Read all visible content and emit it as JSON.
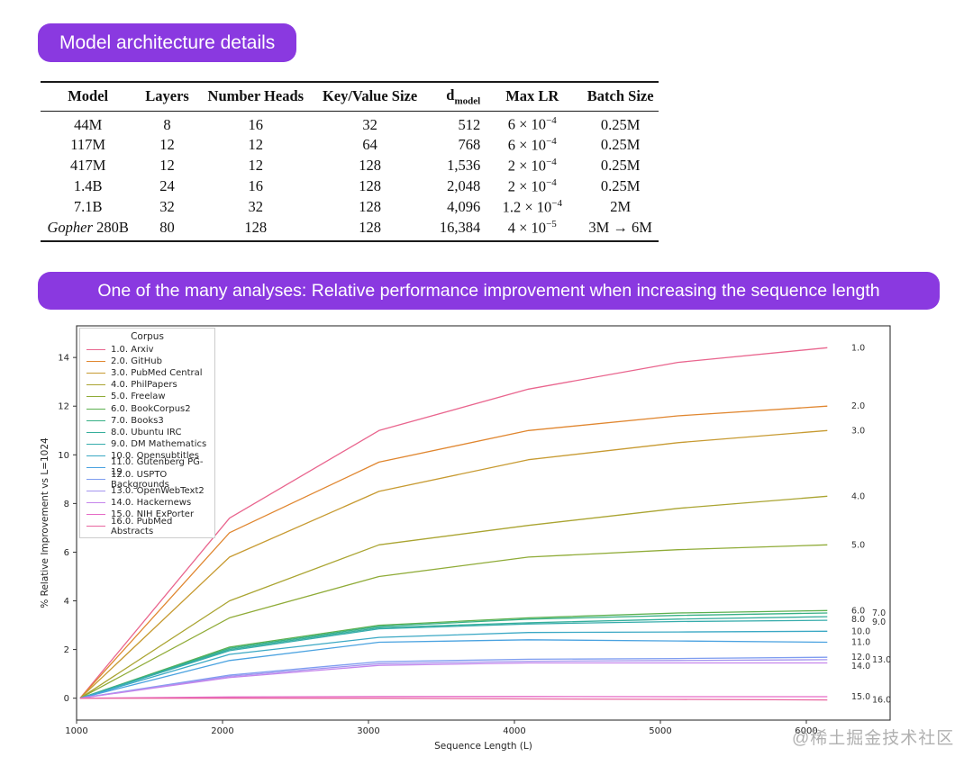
{
  "page": {
    "background": "#ffffff",
    "accent_purple": "#8a39e0",
    "watermark": "@稀土掘金技术社区"
  },
  "badges": {
    "table_badge": "Model architecture details",
    "chart_badge": "One of the many analyses: Relative performance improvement when increasing the sequence length"
  },
  "table": {
    "headers": [
      {
        "text": "Model"
      },
      {
        "text": "Layers"
      },
      {
        "text": "Number Heads"
      },
      {
        "text": "Key/Value Size"
      },
      {
        "text": "d",
        "sub": "model"
      },
      {
        "text": "Max LR"
      },
      {
        "text": "Batch Size"
      }
    ],
    "rows": [
      [
        {
          "text": "44M"
        },
        {
          "text": "8"
        },
        {
          "text": "16"
        },
        {
          "text": "32"
        },
        {
          "text": "512"
        },
        {
          "coef": "6 × 10",
          "exp": "−4"
        },
        {
          "text": "0.25M"
        }
      ],
      [
        {
          "text": "117M"
        },
        {
          "text": "12"
        },
        {
          "text": "12"
        },
        {
          "text": "64"
        },
        {
          "text": "768"
        },
        {
          "coef": "6 × 10",
          "exp": "−4"
        },
        {
          "text": "0.25M"
        }
      ],
      [
        {
          "text": "417M"
        },
        {
          "text": "12"
        },
        {
          "text": "12"
        },
        {
          "text": "128"
        },
        {
          "text": "1,536"
        },
        {
          "coef": "2 × 10",
          "exp": "−4"
        },
        {
          "text": "0.25M"
        }
      ],
      [
        {
          "text": "1.4B"
        },
        {
          "text": "24"
        },
        {
          "text": "16"
        },
        {
          "text": "128"
        },
        {
          "text": "2,048"
        },
        {
          "coef": "2 × 10",
          "exp": "−4"
        },
        {
          "text": "0.25M"
        }
      ],
      [
        {
          "text": "7.1B"
        },
        {
          "text": "32"
        },
        {
          "text": "32"
        },
        {
          "text": "128"
        },
        {
          "text": "4,096"
        },
        {
          "coef": "1.2 × 10",
          "exp": "−4"
        },
        {
          "text": "2M"
        }
      ],
      [
        {
          "italic": "Gopher",
          "text": " 280B"
        },
        {
          "text": "80"
        },
        {
          "text": "128"
        },
        {
          "text": "128"
        },
        {
          "text": "16,384"
        },
        {
          "coef": "4 × 10",
          "exp": "−5"
        },
        {
          "text": "3M → 6M"
        }
      ]
    ]
  },
  "chart_data": {
    "type": "line",
    "title": "",
    "xlabel": "Sequence Length (L)",
    "ylabel": "% Relative Improvement vs L=1024",
    "legend_title": "Corpus",
    "legend_position": "upper left",
    "grid": false,
    "x": [
      1024,
      2048,
      3072,
      4096,
      5120,
      6144
    ],
    "xticks": [
      1000,
      2000,
      3000,
      4000,
      5000,
      6000
    ],
    "yticks": [
      0,
      2,
      4,
      6,
      8,
      10,
      12,
      14
    ],
    "xlim": [
      1000,
      6574
    ],
    "ylim": [
      -0.9,
      15.3
    ],
    "series": [
      {
        "id": "1.0",
        "name": "Arxiv",
        "color": "#e9658e",
        "label_col": 1,
        "values": [
          0,
          7.4,
          11.0,
          12.7,
          13.8,
          14.4
        ]
      },
      {
        "id": "2.0",
        "name": "GitHub",
        "color": "#e0862f",
        "label_col": 1,
        "values": [
          0,
          6.8,
          9.7,
          11.0,
          11.6,
          12.0
        ]
      },
      {
        "id": "3.0",
        "name": "PubMed Central",
        "color": "#c79a31",
        "label_col": 1,
        "values": [
          0,
          5.8,
          8.5,
          9.8,
          10.5,
          11.0
        ]
      },
      {
        "id": "4.0",
        "name": "PhilPapers",
        "color": "#aaa431",
        "label_col": 1,
        "values": [
          0,
          4.0,
          6.3,
          7.1,
          7.8,
          8.3
        ]
      },
      {
        "id": "5.0",
        "name": "Freelaw",
        "color": "#8fab37",
        "label_col": 1,
        "values": [
          0,
          3.3,
          5.0,
          5.8,
          6.1,
          6.3
        ]
      },
      {
        "id": "6.0",
        "name": "BookCorpus2",
        "color": "#5bb04f",
        "label_col": 1,
        "values": [
          0,
          2.1,
          3.0,
          3.3,
          3.5,
          3.6
        ]
      },
      {
        "id": "7.0",
        "name": "Books3",
        "color": "#36b085",
        "label_col": 2,
        "values": [
          0,
          2.05,
          2.95,
          3.25,
          3.4,
          3.5
        ]
      },
      {
        "id": "8.0",
        "name": "Ubuntu IRC",
        "color": "#35ae9b",
        "label_col": 1,
        "values": [
          0,
          2.0,
          2.9,
          3.1,
          3.25,
          3.35
        ]
      },
      {
        "id": "9.0",
        "name": "DM Mathematics",
        "color": "#37acac",
        "label_col": 2,
        "values": [
          0,
          1.95,
          2.85,
          3.05,
          3.15,
          3.2
        ]
      },
      {
        "id": "10.0",
        "name": "Opensubtitles",
        "color": "#3aa8c4",
        "label_col": 1,
        "values": [
          0,
          1.8,
          2.5,
          2.7,
          2.72,
          2.75
        ]
      },
      {
        "id": "11.0",
        "name": "Gutenberg PG-19",
        "color": "#4aa2e0",
        "label_col": 1,
        "values": [
          0,
          1.55,
          2.3,
          2.4,
          2.35,
          2.3
        ]
      },
      {
        "id": "12.0",
        "name": "USPTO Backgrounds",
        "color": "#7e9df0",
        "label_col": 1,
        "values": [
          0,
          0.95,
          1.5,
          1.6,
          1.63,
          1.68
        ]
      },
      {
        "id": "13.0",
        "name": "OpenWebText2",
        "color": "#a495ef",
        "label_col": 2,
        "values": [
          0,
          0.9,
          1.42,
          1.52,
          1.55,
          1.58
        ]
      },
      {
        "id": "14.0",
        "name": "Hackernews",
        "color": "#c585ec",
        "label_col": 1,
        "values": [
          0,
          0.85,
          1.35,
          1.45,
          1.45,
          1.45
        ]
      },
      {
        "id": "15.0",
        "name": "NIH ExPorter",
        "color": "#e66bc6",
        "label_col": 1,
        "values": [
          0,
          0.05,
          0.07,
          0.07,
          0.06,
          0.06
        ]
      },
      {
        "id": "16.0",
        "name": "PubMed Abstracts",
        "color": "#e9659f",
        "label_col": 2,
        "values": [
          0,
          0.0,
          0.0,
          -0.03,
          -0.05,
          -0.07
        ]
      }
    ]
  }
}
